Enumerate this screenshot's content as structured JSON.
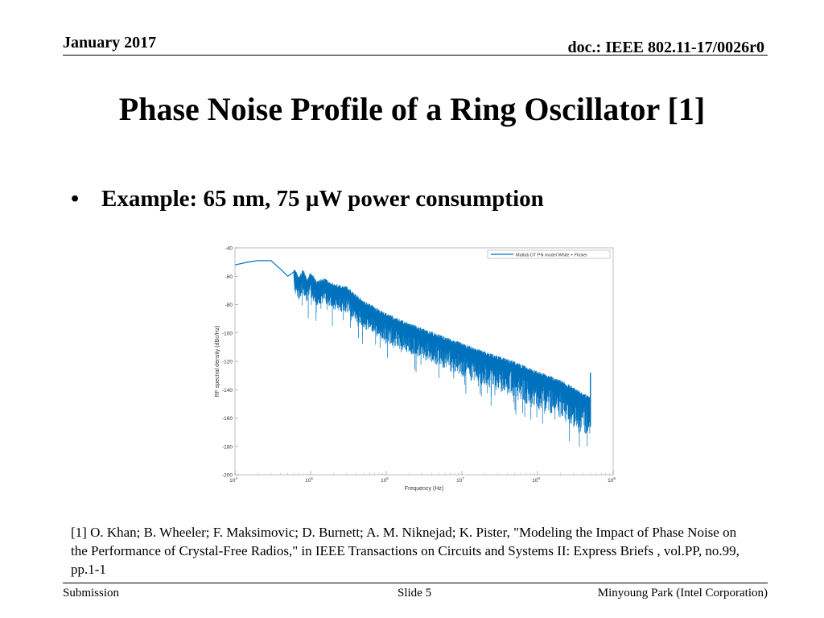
{
  "header": {
    "date": "January 2017",
    "doc": "doc.: IEEE 802.11-17/0026r0"
  },
  "slide": {
    "title": "Phase Noise Profile of a Ring Oscillator [1]",
    "bullet": "Example: 65 nm, 75 µW power consumption",
    "bullet_marker": "•",
    "reference": "[1] O. Khan; B. Wheeler; F. Maksimovic; D. Burnett; A. M. Niknejad; K. Pister, \"Modeling the Impact of Phase Noise on the Performance of Crystal-Free Radios,\" in IEEE Transactions on Circuits and Systems II: Express Briefs , vol.PP, no.99, pp.1-1"
  },
  "footer": {
    "left": "Submission",
    "center": "Slide 5",
    "right": "Minyoung Park (Intel Corporation)"
  },
  "chart_data": {
    "type": "line",
    "xscale": "log",
    "xlabel": "Frequency (Hz)",
    "ylabel": "RF spectral density (dBc/Hz)",
    "xlim": [
      10000,
      1000000000
    ],
    "ylim": [
      -200,
      -40
    ],
    "yticks": [
      -40,
      -60,
      -80,
      -100,
      -120,
      -140,
      -160,
      -180,
      -200
    ],
    "xticks": [
      {
        "base": "10",
        "exp": "4"
      },
      {
        "base": "10",
        "exp": "5"
      },
      {
        "base": "10",
        "exp": "6"
      },
      {
        "base": "10",
        "exp": "7"
      },
      {
        "base": "10",
        "exp": "8"
      },
      {
        "base": "10",
        "exp": "9"
      }
    ],
    "legend": "top-right",
    "grid": false,
    "series": [
      {
        "name": "Matlab DT PN model White + Flicker",
        "color": "#0072bd",
        "x": [
          10000,
          15000,
          20000,
          25000,
          30000,
          40000,
          50000,
          60000,
          70000,
          80000,
          90000,
          100000,
          120000,
          150000,
          200000,
          300000,
          500000,
          1000000,
          2000000,
          5000000,
          10000000,
          20000000,
          50000000,
          100000000,
          200000000,
          500000000
        ],
        "y": [
          -52,
          -50,
          -49,
          -49,
          -49,
          -55,
          -60,
          -57,
          -63,
          -58,
          -65,
          -60,
          -66,
          -64,
          -68,
          -70,
          -80,
          -89,
          -96,
          -104,
          -110,
          -116,
          -123,
          -130,
          -136,
          -148
        ]
      }
    ]
  }
}
